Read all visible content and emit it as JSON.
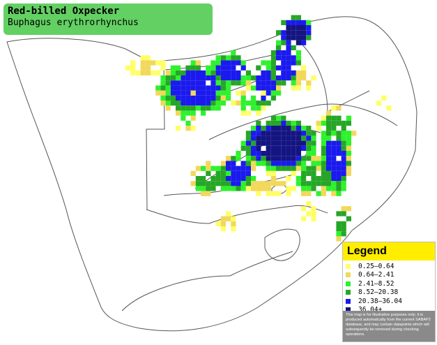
{
  "title": {
    "common_name": "Red-billed Oxpecker",
    "scientific_name": "Buphagus erythrorhynchus",
    "background_color": "#63d063"
  },
  "legend": {
    "heading": "Legend",
    "heading_color": "#ffee00",
    "entries": [
      {
        "label": "0.25–0.64",
        "color": "#ffff66"
      },
      {
        "label": "0.64–2.41",
        "color": "#f2d85a"
      },
      {
        "label": "2.41–8.52",
        "color": "#2df22d"
      },
      {
        "label": "8.52–20.38",
        "color": "#26a626"
      },
      {
        "label": "20.38–36.04",
        "color": "#1a1aee"
      },
      {
        "label": "36.04+",
        "color": "#141482"
      }
    ],
    "note": "This map is for illustrative purposes only; it is produced automatically from the current SABAP2 database, and may contain datapoints which will subsequently be removed during checking operations."
  },
  "map": {
    "background_color": "#ffffff",
    "border_color": "#555555",
    "distribution": "Occurrence cells shaded by reporting rate, concentrated across the north-east and along the east coast, with scattered records in the north-west"
  }
}
